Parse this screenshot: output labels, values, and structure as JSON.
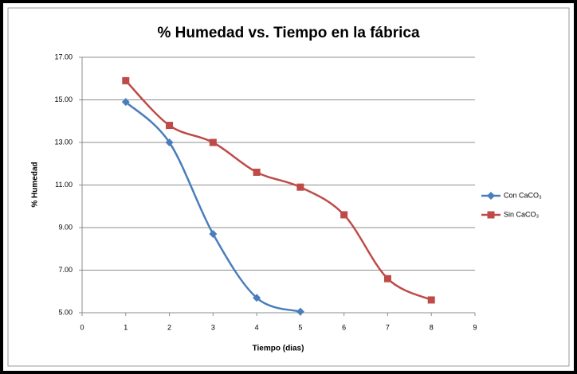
{
  "chart_data": {
    "type": "line",
    "title": "% Humedad vs. Tiempo en la fábrica",
    "xlabel": "Tiempo (dias)",
    "ylabel": "% Humedad",
    "xlim": [
      0,
      9
    ],
    "xticks": [
      0,
      1,
      2,
      3,
      4,
      5,
      6,
      7,
      8,
      9
    ],
    "ylim": [
      5,
      17
    ],
    "yticks": [
      {
        "value": 5,
        "label": "5.00"
      },
      {
        "value": 7,
        "label": "7.00"
      },
      {
        "value": 9,
        "label": "9.00"
      },
      {
        "value": 11,
        "label": "11.00"
      },
      {
        "value": 13,
        "label": "13.00"
      },
      {
        "value": 15,
        "label": "15.00"
      },
      {
        "value": 17,
        "label": "17.00"
      }
    ],
    "grid": true,
    "legend": "right",
    "series": [
      {
        "name": "Con CaCO₃",
        "color": "#4a7ebb",
        "marker": "diamond",
        "x": [
          1,
          2,
          3,
          4,
          5
        ],
        "values": [
          14.9,
          13.0,
          8.7,
          5.7,
          5.05
        ]
      },
      {
        "name": "Sin CaCO₃",
        "color": "#be4b48",
        "marker": "square",
        "x": [
          1,
          2,
          3,
          4,
          5,
          6,
          7,
          8
        ],
        "values": [
          15.9,
          13.8,
          13.0,
          11.6,
          10.9,
          9.6,
          6.6,
          5.6
        ]
      }
    ]
  }
}
